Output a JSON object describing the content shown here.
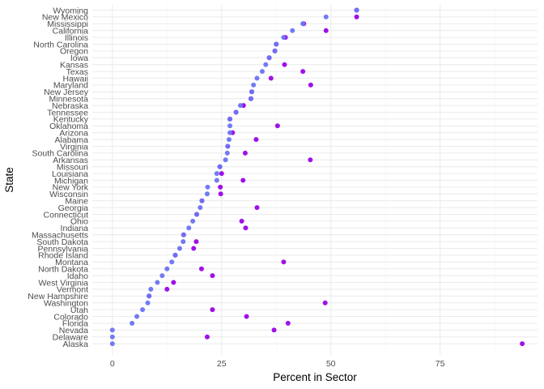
{
  "chart_data": {
    "type": "scatter",
    "title": "",
    "xlabel": "Percent  in Sector",
    "ylabel": "State",
    "xlim": [
      -4.6,
      97.3
    ],
    "x_ticks": [
      0,
      25,
      50,
      75
    ],
    "x_tick_labels": [
      "0",
      "25",
      "50",
      "75"
    ],
    "grid": true,
    "legend": "none",
    "colors": {
      "series_a": "#6b74f2",
      "series_b": "#a010e8"
    },
    "categories": [
      "Wyoming",
      "New Mexico",
      "Mississippi",
      "California",
      "Illinois",
      "North Carolina",
      "Oregon",
      "Iowa",
      "Kansas",
      "Texas",
      "Hawaii",
      "Maryland",
      "New Jersey",
      "Minnesota",
      "Nebraska",
      "Tennessee",
      "Kentucky",
      "Oklahoma",
      "Arizona",
      "Alabama",
      "Virginia",
      "South Carolina",
      "Arkansas",
      "Missouri",
      "Louisiana",
      "Michigan",
      "New York",
      "Wisconsin",
      "Maine",
      "Georgia",
      "Connecticut",
      "Ohio",
      "Indiana",
      "Massachusetts",
      "South Dakota",
      "Pennsylvania",
      "Rhode Island",
      "Montana",
      "North Dakota",
      "Idaho",
      "West Virginia",
      "Vermont",
      "New Hampshire",
      "Washington",
      "Utah",
      "Colorado",
      "Florida",
      "Nevada",
      "Delaware",
      "Alaska"
    ],
    "series": [
      {
        "values": [
          55.9,
          48.9,
          43.6,
          41.2,
          39.2,
          37.5,
          37.2,
          35.9,
          35.1,
          34.3,
          33.1,
          32.3,
          31.9,
          31.7,
          29.3,
          28.3,
          26.9,
          26.9,
          26.9,
          26.7,
          26.4,
          26.3,
          25.9,
          24.6,
          23.9,
          23.9,
          21.8,
          21.7,
          20.5,
          20.1,
          19.3,
          18.4,
          17.5,
          16.3,
          16.2,
          15.4,
          14.4,
          13.6,
          12.5,
          11.4,
          10.3,
          8.8,
          8.4,
          8.1,
          6.9,
          5.6,
          4.5,
          0.0,
          0.0,
          0.0
        ]
      },
      {
        "values": [
          55.9,
          55.9,
          43.8,
          48.9,
          39.6,
          37.5,
          37.2,
          35.9,
          39.4,
          43.6,
          36.3,
          45.4,
          31.9,
          31.7,
          30.0,
          28.3,
          26.9,
          37.8,
          27.5,
          32.9,
          26.4,
          30.4,
          45.3,
          24.6,
          25.0,
          29.9,
          24.7,
          24.8,
          20.5,
          33.1,
          19.3,
          29.6,
          30.5,
          16.3,
          19.2,
          18.6,
          14.4,
          39.2,
          20.4,
          22.9,
          14.0,
          12.5,
          8.4,
          48.7,
          22.9,
          30.7,
          40.2,
          37.0,
          21.7,
          93.8
        ]
      }
    ]
  }
}
